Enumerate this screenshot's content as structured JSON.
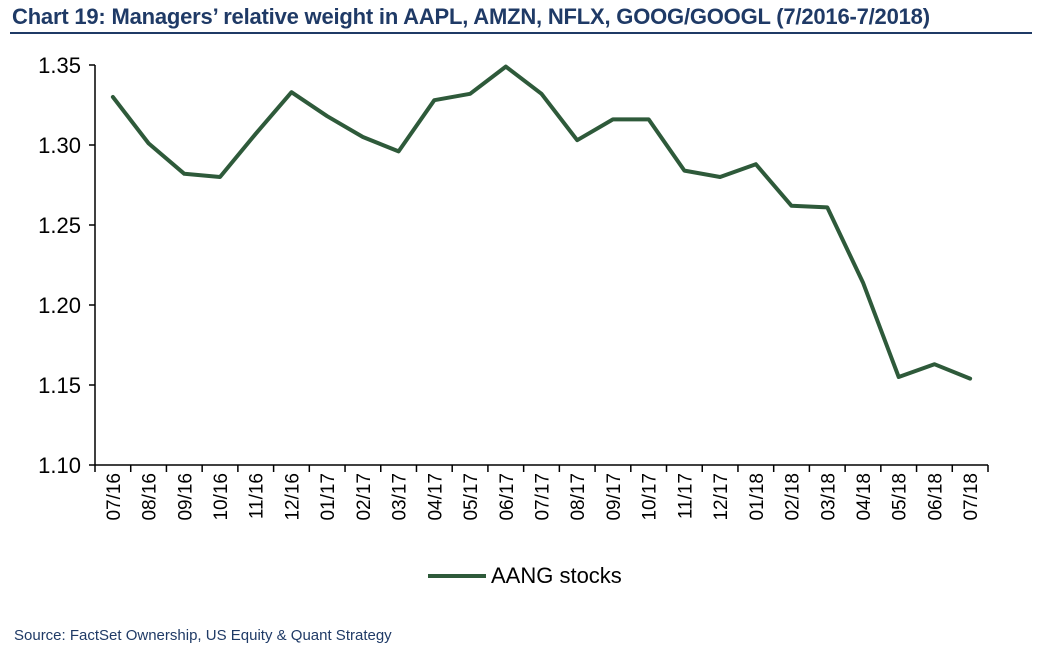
{
  "title": "Chart 19: Managers’ relative weight in AAPL, AMZN, NFLX, GOOG/GOOGL (7/2016-7/2018)",
  "source": "Source:  FactSet Ownership,  US Equity  & Quant Strategy",
  "colors": {
    "title": "#1f3a66",
    "line": "#2e5a3a",
    "axis": "#000000"
  },
  "chart_data": {
    "type": "line",
    "title": "",
    "xlabel": "",
    "ylabel": "",
    "ylim": [
      1.1,
      1.35
    ],
    "yticks": [
      "1.10",
      "1.15",
      "1.20",
      "1.25",
      "1.30",
      "1.35"
    ],
    "ytick_values": [
      1.1,
      1.15,
      1.2,
      1.25,
      1.3,
      1.35
    ],
    "categories": [
      "07/16",
      "08/16",
      "09/16",
      "10/16",
      "11/16",
      "12/16",
      "01/17",
      "02/17",
      "03/17",
      "04/17",
      "05/17",
      "06/17",
      "07/17",
      "08/17",
      "09/17",
      "10/17",
      "11/17",
      "12/17",
      "01/18",
      "02/18",
      "03/18",
      "04/18",
      "05/18",
      "06/18",
      "07/18"
    ],
    "series": [
      {
        "name": "AANG stocks",
        "values": [
          1.33,
          1.301,
          1.282,
          1.28,
          1.307,
          1.333,
          1.318,
          1.305,
          1.296,
          1.328,
          1.332,
          1.349,
          1.332,
          1.303,
          1.316,
          1.316,
          1.284,
          1.28,
          1.288,
          1.262,
          1.261,
          1.214,
          1.155,
          1.163,
          1.154
        ]
      }
    ],
    "grid": false,
    "legend": "bottom-center"
  }
}
